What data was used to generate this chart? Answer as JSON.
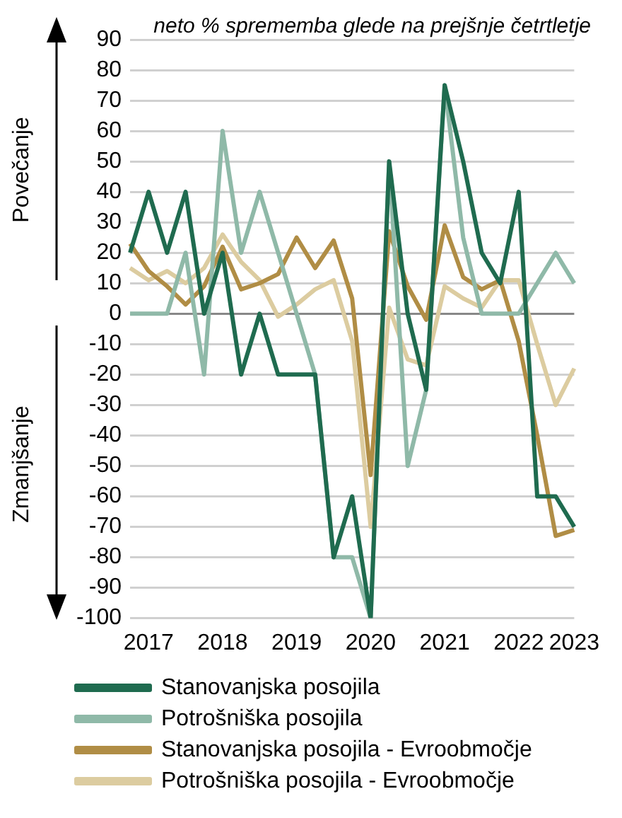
{
  "chart_data": {
    "type": "line",
    "title": "neto % sprememba glede na prejšnje četrtletje",
    "categories": [
      null,
      "2017",
      null,
      null,
      null,
      "2018",
      null,
      null,
      null,
      "2019",
      null,
      null,
      null,
      "2020",
      null,
      null,
      null,
      "2021",
      null,
      null,
      null,
      "2022",
      null,
      null,
      "2023"
    ],
    "series": [
      {
        "name": "Stanovanjska posojila",
        "color": "#1f6b4f",
        "values": [
          20,
          40,
          20,
          40,
          0,
          20,
          -20,
          0,
          -20,
          -20,
          -20,
          -80,
          -60,
          -100,
          50,
          0,
          -25,
          75,
          50,
          20,
          10,
          40,
          -60,
          -60,
          -70
        ]
      },
      {
        "name": "Potrošniška posojila",
        "color": "#8fb9a8",
        "values": [
          0,
          0,
          0,
          20,
          -20,
          60,
          20,
          40,
          20,
          0,
          -20,
          -80,
          -80,
          -100,
          50,
          -50,
          -25,
          75,
          25,
          0,
          0,
          0,
          10,
          20,
          10
        ]
      },
      {
        "name": "Stanovanjska posojila - Evroobmočje",
        "color": "#b08d45",
        "values": [
          23,
          14,
          9,
          3,
          9,
          22,
          8,
          10,
          13,
          25,
          15,
          24,
          5,
          -53,
          27,
          9,
          -2,
          29,
          12,
          8,
          11,
          -9,
          -40,
          -73,
          -71
        ]
      },
      {
        "name": "Potrošniška posojila - Evroobmočje",
        "color": "#dccca0",
        "values": [
          15,
          11,
          14,
          10,
          15,
          26,
          17,
          11,
          -1,
          3,
          8,
          11,
          -9,
          -70,
          2,
          -15,
          -17,
          9,
          5,
          2,
          11,
          11,
          -10,
          -30,
          -18
        ]
      }
    ],
    "ylim": [
      -100,
      90
    ],
    "yticks": [
      -100,
      -90,
      -80,
      -70,
      -60,
      -50,
      -40,
      -30,
      -20,
      -10,
      0,
      10,
      20,
      30,
      40,
      50,
      60,
      70,
      80,
      90
    ],
    "grid": "y",
    "legend": "bottom",
    "marker": "none",
    "line_style": "solid",
    "annotations": [
      "Povečanje",
      "Zmanjšanje"
    ]
  }
}
